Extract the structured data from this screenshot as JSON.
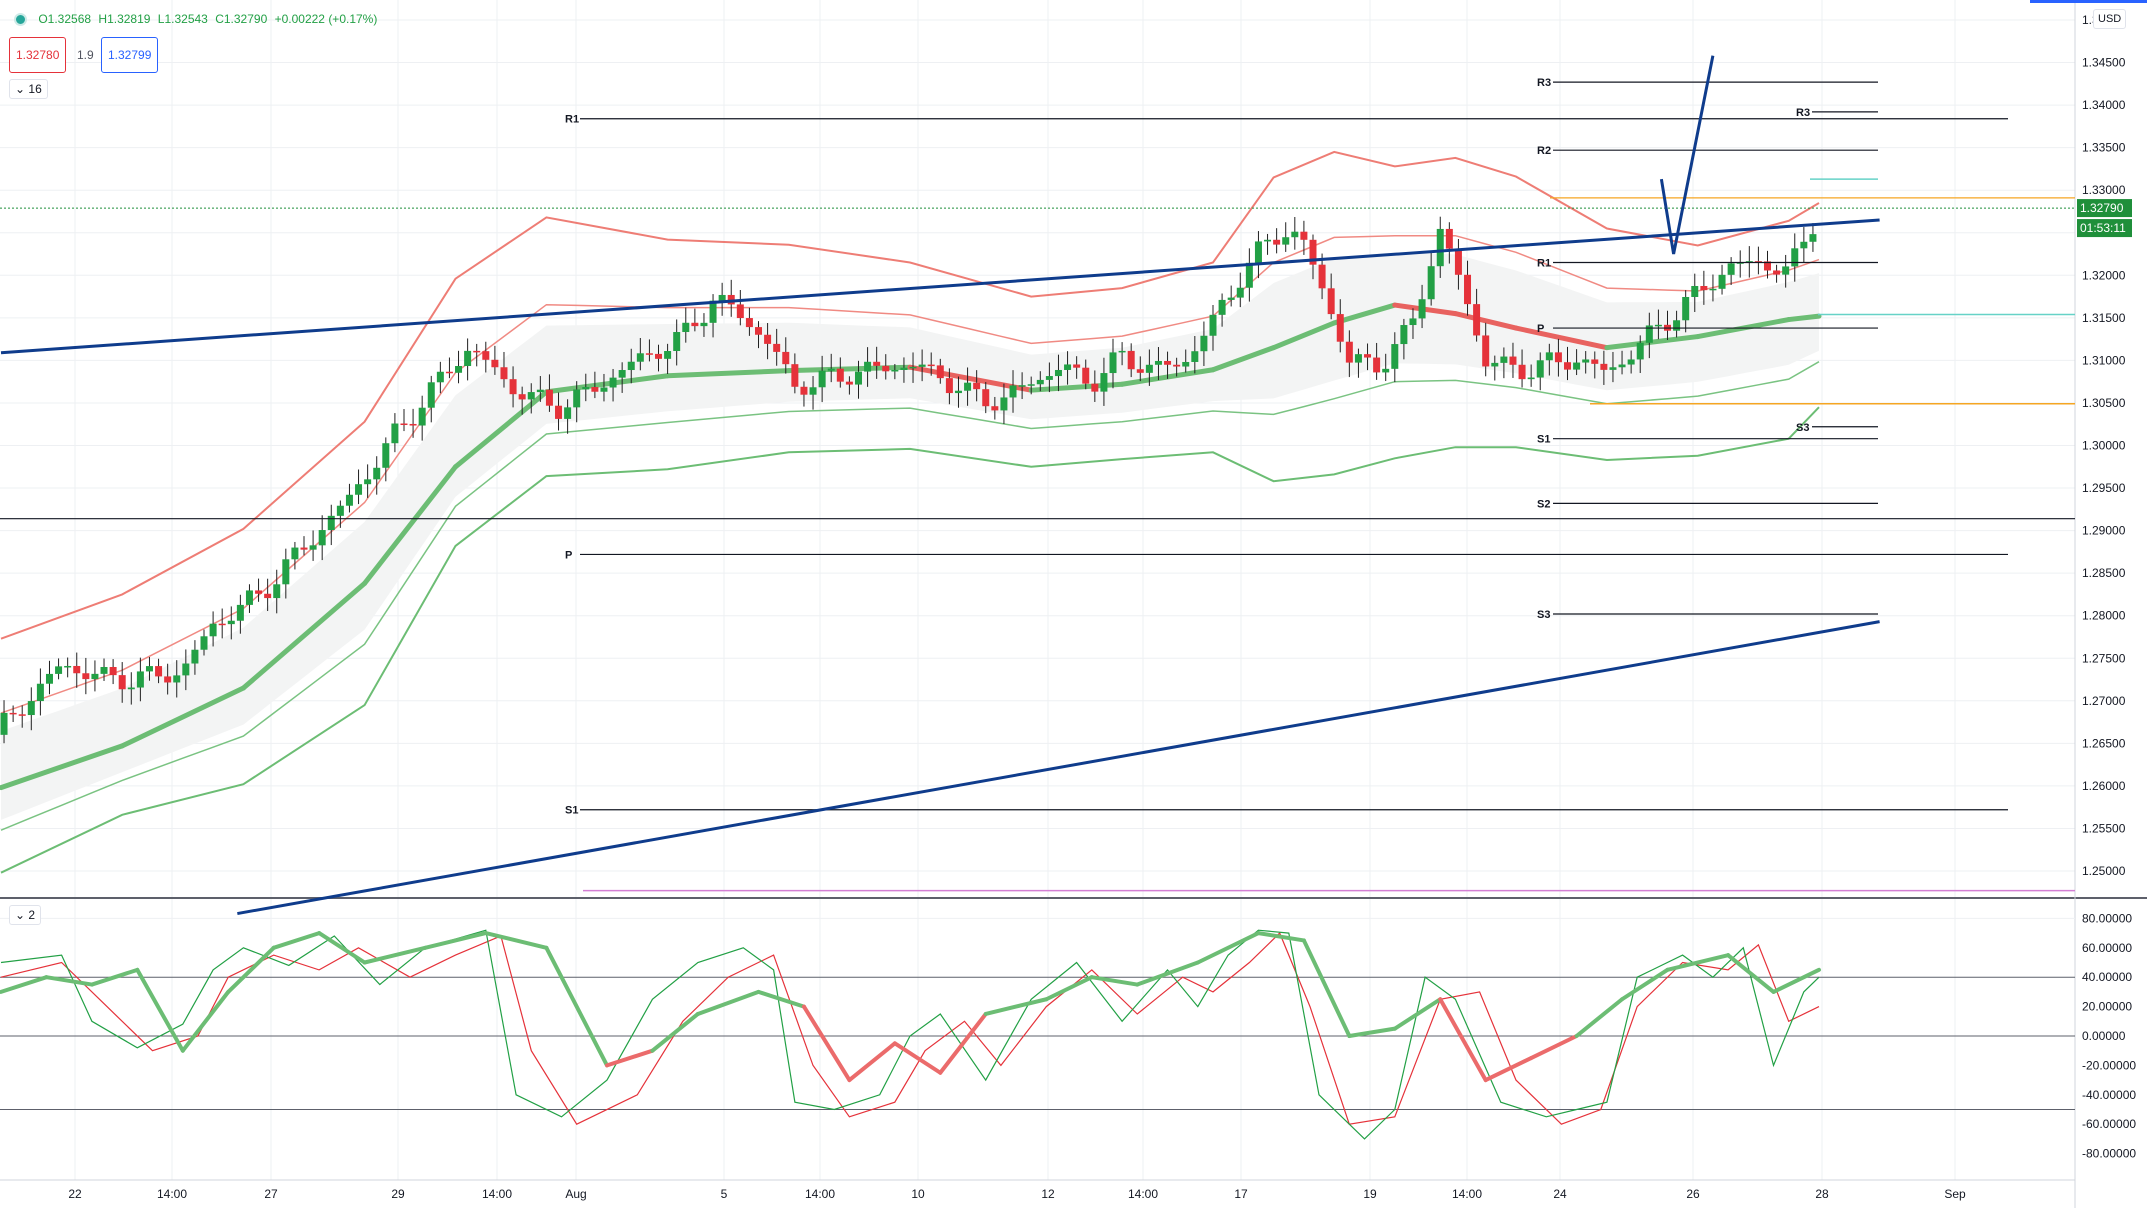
{
  "header": {
    "open": "O1.32568",
    "high": "H1.32819",
    "low": "L1.32543",
    "close": "C1.32790",
    "change": "+0.00222 (+0.17%)",
    "bid": "1.32780",
    "spread": "1.9",
    "ask": "1.32799",
    "indicator_count_top": "16",
    "indicator_count_bottom": "2"
  },
  "currency": "USD",
  "price_axis": {
    "min": 1.245,
    "max": 1.35,
    "ticks": [
      "1.35000",
      "1.34500",
      "1.34000",
      "1.33500",
      "1.33000",
      "1.32500",
      "1.32000",
      "1.31500",
      "1.31000",
      "1.30500",
      "1.30000",
      "1.29500",
      "1.29000",
      "1.28500",
      "1.28000",
      "1.27500",
      "1.27000",
      "1.26500",
      "1.26000",
      "1.25500",
      "1.25000"
    ],
    "last_price": "1.32790",
    "countdown": "01:53:11"
  },
  "osc_axis": {
    "min": -95,
    "max": 85,
    "ticks": [
      "80.00000",
      "60.00000",
      "40.00000",
      "20.00000",
      "0.00000",
      "-20.00000",
      "-40.00000",
      "-60.00000",
      "-80.00000"
    ],
    "levels": [
      40,
      0,
      -50
    ]
  },
  "time_axis": {
    "labels": [
      "22",
      "14:00",
      "27",
      "29",
      "14:00",
      "Aug",
      "5",
      "14:00",
      "10",
      "12",
      "14:00",
      "17",
      "19",
      "14:00",
      "24",
      "26",
      "28",
      "Sep"
    ]
  },
  "pivots": {
    "left_set": [
      {
        "label": "R1",
        "value": 1.3384
      },
      {
        "label": "P",
        "value": 1.2872
      },
      {
        "label": "S1",
        "value": 1.2572
      }
    ],
    "right_set": [
      {
        "label": "R3",
        "value": 1.3427
      },
      {
        "label": "R2",
        "value": 1.3347
      },
      {
        "label": "R1",
        "value": 1.3215
      },
      {
        "label": "P",
        "value": 1.3138
      },
      {
        "label": "S1",
        "value": 1.3008
      },
      {
        "label": "S2",
        "value": 1.2932
      },
      {
        "label": "S3",
        "value": 1.2802
      }
    ],
    "latest_set": [
      {
        "label": "R3",
        "value": 1.3392
      },
      {
        "label": "S3",
        "value": 1.3022
      }
    ]
  },
  "chart_data": {
    "type": "candlestick",
    "symbol_currency": "USD",
    "ohlc_last": {
      "open": 1.32568,
      "high": 1.32819,
      "low": 1.32543,
      "close": 1.3279
    },
    "close_path": [
      [
        0,
        1.2668
      ],
      [
        20,
        1.2742
      ],
      [
        36,
        1.2725
      ],
      [
        50,
        1.2728
      ],
      [
        60,
        1.2735
      ],
      [
        70,
        1.2789
      ],
      [
        85,
        1.2823
      ],
      [
        100,
        1.288
      ],
      [
        115,
        1.2938
      ],
      [
        130,
        1.3012
      ],
      [
        145,
        1.3077
      ],
      [
        155,
        1.3117
      ],
      [
        165,
        1.3079
      ],
      [
        175,
        1.3055
      ],
      [
        185,
        1.3045
      ],
      [
        195,
        1.3065
      ],
      [
        210,
        1.31
      ],
      [
        225,
        1.3127
      ],
      [
        235,
        1.3172
      ],
      [
        245,
        1.3152
      ],
      [
        255,
        1.3112
      ],
      [
        262,
        1.307
      ],
      [
        270,
        1.3075
      ],
      [
        280,
        1.3085
      ],
      [
        290,
        1.309
      ],
      [
        300,
        1.3095
      ],
      [
        310,
        1.3082
      ],
      [
        320,
        1.3058
      ],
      [
        330,
        1.3052
      ],
      [
        340,
        1.3075
      ],
      [
        350,
        1.3092
      ],
      [
        360,
        1.3074
      ],
      [
        370,
        1.3104
      ],
      [
        380,
        1.309
      ],
      [
        390,
        1.3096
      ],
      [
        400,
        1.3145
      ],
      [
        410,
        1.3205
      ],
      [
        420,
        1.3245
      ],
      [
        425,
        1.3255
      ],
      [
        430,
        1.3235
      ],
      [
        435,
        1.3195
      ],
      [
        440,
        1.3148
      ],
      [
        445,
        1.3098
      ],
      [
        455,
        1.3095
      ],
      [
        465,
        1.3135
      ],
      [
        470,
        1.3195
      ],
      [
        475,
        1.325
      ],
      [
        480,
        1.321
      ],
      [
        485,
        1.3155
      ],
      [
        490,
        1.31
      ],
      [
        500,
        1.3088
      ],
      [
        510,
        1.3095
      ],
      [
        520,
        1.3102
      ],
      [
        530,
        1.3085
      ],
      [
        540,
        1.3115
      ],
      [
        550,
        1.3148
      ],
      [
        560,
        1.3178
      ],
      [
        570,
        1.321
      ],
      [
        580,
        1.3215
      ],
      [
        590,
        1.3205
      ],
      [
        595,
        1.3238
      ],
      [
        600,
        1.3279
      ]
    ],
    "middle_band_path": [
      [
        0,
        1.2598
      ],
      [
        40,
        1.2647
      ],
      [
        80,
        1.2715
      ],
      [
        120,
        1.2838
      ],
      [
        150,
        1.2975
      ],
      [
        180,
        1.3063
      ],
      [
        220,
        1.3082
      ],
      [
        260,
        1.3088
      ],
      [
        300,
        1.3092
      ],
      [
        340,
        1.3065
      ],
      [
        370,
        1.3072
      ],
      [
        400,
        1.3089
      ],
      [
        420,
        1.3115
      ],
      [
        440,
        1.3144
      ],
      [
        460,
        1.3165
      ],
      [
        480,
        1.3155
      ],
      [
        500,
        1.3138
      ],
      [
        530,
        1.3115
      ],
      [
        560,
        1.3128
      ],
      [
        590,
        1.3148
      ],
      [
        600,
        1.3152
      ]
    ],
    "upper_band_path": [
      [
        0,
        1.2773
      ],
      [
        40,
        1.2825
      ],
      [
        80,
        1.2902
      ],
      [
        120,
        1.3028
      ],
      [
        150,
        1.3196
      ],
      [
        180,
        1.3268
      ],
      [
        220,
        1.3242
      ],
      [
        260,
        1.3236
      ],
      [
        300,
        1.3215
      ],
      [
        340,
        1.3175
      ],
      [
        370,
        1.3185
      ],
      [
        400,
        1.3215
      ],
      [
        420,
        1.3315
      ],
      [
        440,
        1.3345
      ],
      [
        460,
        1.3328
      ],
      [
        480,
        1.3338
      ],
      [
        500,
        1.3316
      ],
      [
        530,
        1.3255
      ],
      [
        560,
        1.3235
      ],
      [
        590,
        1.3264
      ],
      [
        600,
        1.3285
      ]
    ],
    "lower_band_path": [
      [
        0,
        1.2498
      ],
      [
        40,
        1.2566
      ],
      [
        80,
        1.2602
      ],
      [
        120,
        1.2695
      ],
      [
        150,
        1.2882
      ],
      [
        180,
        1.2964
      ],
      [
        220,
        1.2972
      ],
      [
        260,
        1.2992
      ],
      [
        300,
        1.2996
      ],
      [
        340,
        1.2975
      ],
      [
        370,
        1.2984
      ],
      [
        400,
        1.2992
      ],
      [
        420,
        1.2958
      ],
      [
        440,
        1.2966
      ],
      [
        460,
        1.2985
      ],
      [
        480,
        1.2998
      ],
      [
        500,
        1.2998
      ],
      [
        530,
        1.2983
      ],
      [
        560,
        1.2988
      ],
      [
        590,
        1.3008
      ],
      [
        600,
        1.3045
      ]
    ],
    "trendlines": [
      {
        "name": "upper-channel",
        "from": [
          0,
          1.3109
        ],
        "to": [
          620,
          1.3265
        ]
      },
      {
        "name": "lower-channel",
        "from": [
          78,
          1.245
        ],
        "to": [
          620,
          1.2793
        ]
      },
      {
        "name": "projection",
        "points": [
          [
            548,
            1.3313
          ],
          [
            552,
            1.3225
          ],
          [
            565,
            1.3458
          ]
        ]
      }
    ],
    "oscillator": {
      "name": "Stochastic",
      "k_path": [
        [
          0,
          50
        ],
        [
          20,
          55
        ],
        [
          30,
          10
        ],
        [
          45,
          -8
        ],
        [
          60,
          8
        ],
        [
          70,
          45
        ],
        [
          80,
          60
        ],
        [
          95,
          48
        ],
        [
          110,
          68
        ],
        [
          125,
          35
        ],
        [
          140,
          60
        ],
        [
          160,
          72
        ],
        [
          170,
          -40
        ],
        [
          185,
          -55
        ],
        [
          200,
          -30
        ],
        [
          215,
          25
        ],
        [
          230,
          50
        ],
        [
          245,
          60
        ],
        [
          255,
          45
        ],
        [
          262,
          -45
        ],
        [
          275,
          -50
        ],
        [
          290,
          -40
        ],
        [
          300,
          0
        ],
        [
          310,
          15
        ],
        [
          325,
          -30
        ],
        [
          340,
          25
        ],
        [
          355,
          50
        ],
        [
          370,
          10
        ],
        [
          385,
          45
        ],
        [
          395,
          20
        ],
        [
          405,
          55
        ],
        [
          415,
          72
        ],
        [
          425,
          70
        ],
        [
          435,
          -40
        ],
        [
          450,
          -70
        ],
        [
          460,
          -50
        ],
        [
          470,
          40
        ],
        [
          480,
          25
        ],
        [
          495,
          -45
        ],
        [
          510,
          -55
        ],
        [
          520,
          -50
        ],
        [
          530,
          -45
        ],
        [
          540,
          40
        ],
        [
          555,
          55
        ],
        [
          565,
          40
        ],
        [
          575,
          60
        ],
        [
          585,
          -20
        ],
        [
          595,
          30
        ],
        [
          600,
          40
        ]
      ],
      "d_path": [
        [
          0,
          40
        ],
        [
          20,
          50
        ],
        [
          35,
          20
        ],
        [
          50,
          -10
        ],
        [
          65,
          0
        ],
        [
          75,
          40
        ],
        [
          90,
          55
        ],
        [
          105,
          45
        ],
        [
          118,
          60
        ],
        [
          135,
          40
        ],
        [
          150,
          55
        ],
        [
          165,
          68
        ],
        [
          175,
          -10
        ],
        [
          190,
          -60
        ],
        [
          210,
          -40
        ],
        [
          225,
          10
        ],
        [
          240,
          40
        ],
        [
          255,
          55
        ],
        [
          268,
          -20
        ],
        [
          280,
          -55
        ],
        [
          295,
          -45
        ],
        [
          305,
          -10
        ],
        [
          318,
          10
        ],
        [
          330,
          -20
        ],
        [
          345,
          20
        ],
        [
          360,
          45
        ],
        [
          375,
          15
        ],
        [
          390,
          40
        ],
        [
          400,
          30
        ],
        [
          412,
          50
        ],
        [
          422,
          70
        ],
        [
          432,
          20
        ],
        [
          445,
          -60
        ],
        [
          460,
          -55
        ],
        [
          475,
          25
        ],
        [
          488,
          30
        ],
        [
          500,
          -30
        ],
        [
          515,
          -60
        ],
        [
          528,
          -50
        ],
        [
          540,
          20
        ],
        [
          555,
          50
        ],
        [
          570,
          45
        ],
        [
          580,
          62
        ],
        [
          590,
          10
        ],
        [
          600,
          20
        ]
      ],
      "smooth_path": [
        [
          0,
          30
        ],
        [
          15,
          40
        ],
        [
          30,
          35
        ],
        [
          45,
          45
        ],
        [
          60,
          -10
        ],
        [
          75,
          30
        ],
        [
          90,
          60
        ],
        [
          105,
          70
        ],
        [
          120,
          50
        ],
        [
          140,
          60
        ],
        [
          160,
          70
        ],
        [
          180,
          60
        ],
        [
          200,
          -20
        ],
        [
          215,
          -10
        ],
        [
          230,
          15
        ],
        [
          250,
          30
        ],
        [
          265,
          20
        ],
        [
          280,
          -30
        ],
        [
          295,
          -5
        ],
        [
          310,
          -25
        ],
        [
          325,
          15
        ],
        [
          345,
          25
        ],
        [
          360,
          40
        ],
        [
          375,
          35
        ],
        [
          395,
          50
        ],
        [
          415,
          70
        ],
        [
          430,
          65
        ],
        [
          445,
          0
        ],
        [
          460,
          5
        ],
        [
          475,
          25
        ],
        [
          490,
          -30
        ],
        [
          505,
          -15
        ],
        [
          520,
          0
        ],
        [
          535,
          25
        ],
        [
          550,
          45
        ],
        [
          570,
          55
        ],
        [
          585,
          30
        ],
        [
          600,
          45
        ]
      ]
    }
  },
  "colors": {
    "up": "#22a045",
    "down": "#e5323a",
    "band_red": "#ee7d75",
    "band_green": "#6cbd74",
    "trend": "#0f3c8c",
    "pivot": "#131722",
    "cyan": "#66d2c7",
    "orange": "#f5a623",
    "magenta": "#d37fd4",
    "price_tag": "#1f8f3a"
  }
}
